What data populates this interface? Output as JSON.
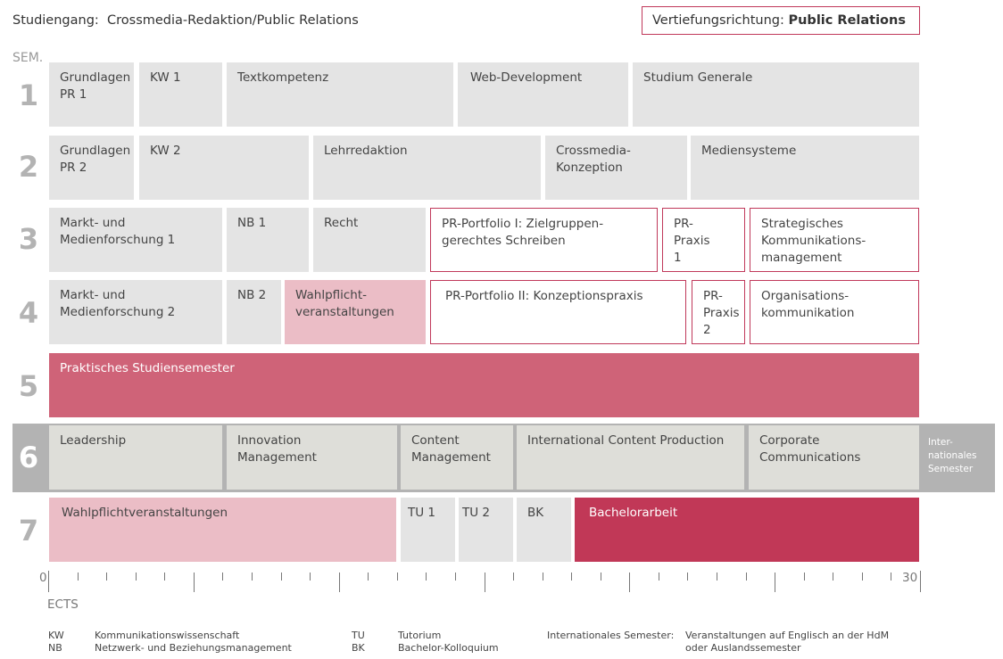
{
  "header": {
    "study_label": "Studiengang:",
    "study_value": "Crossmedia-Redaktion/Public Relations",
    "focus_label": "Vertiefungsrichtung:",
    "focus_value": "Public Relations"
  },
  "sem_label": "SEM.",
  "semesters": {
    "s1": {
      "num": "1",
      "courses": [
        "Grundlagen PR 1",
        "KW 1",
        "Textkompetenz",
        "Web-Development",
        "Studium Generale"
      ]
    },
    "s2": {
      "num": "2",
      "courses": [
        "Grundlagen PR 2",
        "KW 2",
        "Lehrredaktion",
        "Crossmedia-Konzeption",
        "Mediensysteme"
      ]
    },
    "s3": {
      "num": "3",
      "courses": [
        "Markt- und Medienforschung 1",
        "NB 1",
        "Recht",
        "PR-Portfolio I: Zielgruppen-gerechtes Schreiben",
        "PR-Praxis 1",
        "Strategisches Kommunikations-management"
      ]
    },
    "s4": {
      "num": "4",
      "courses": [
        "Markt- und Medienforschung 2",
        "NB 2",
        "Wahlpflicht-veranstaltungen",
        "PR-Portfolio II: Konzeptionspraxis",
        "PR-Praxis 2",
        "Organisations-kommunikation"
      ]
    },
    "s5": {
      "num": "5",
      "courses": [
        "Praktisches Studiensemester"
      ]
    },
    "s6": {
      "num": "6",
      "courses": [
        "Leadership",
        "Innovation Management",
        "Content Management",
        "International Content Production",
        "Corporate Communications"
      ],
      "side_label": "Inter-nationales Semester"
    },
    "s7": {
      "num": "7",
      "courses": [
        "Wahlpflichtveranstaltungen",
        "TU 1",
        "TU 2",
        "BK",
        "Bachelorarbeit"
      ]
    }
  },
  "axis": {
    "start": "0",
    "end": "30",
    "unit": "ECTS",
    "max_ects": 30
  },
  "legend": {
    "kw_abbr": "KW",
    "kw_text": "Kommunikationswissenschaft",
    "nb_abbr": "NB",
    "nb_text": "Netzwerk- und Beziehungsmanagement",
    "tu_abbr": "TU",
    "tu_text": "Tutorium",
    "bk_abbr": "BK",
    "bk_text": "Bachelor-Kolloquium",
    "intl_label": "Internationales Semester:",
    "intl_text_1": "Veranstaltungen auf Englisch an der HdM",
    "intl_text_2": "oder Auslandssemester"
  },
  "colors": {
    "accent": "#c0385a",
    "grey_cell": "#e4e4e4",
    "pink_light": "#ebbdc6",
    "pink_mid": "#cf6378",
    "pink_dark": "#c13857",
    "band_grey": "#b3b3b3"
  }
}
